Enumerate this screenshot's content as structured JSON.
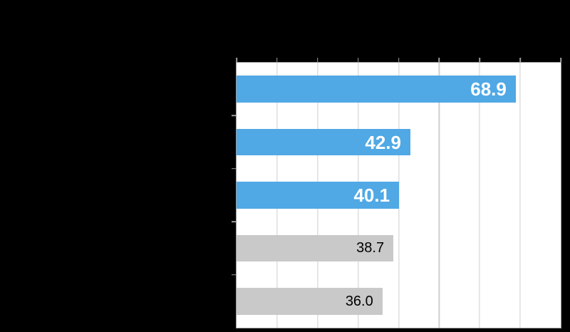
{
  "chart_data": {
    "type": "bar",
    "orientation": "horizontal",
    "title": "",
    "xlabel": "",
    "ylabel": "",
    "categories": [
      "",
      "",
      "",
      "",
      ""
    ],
    "values": [
      68.9,
      42.9,
      40.1,
      38.7,
      36.0
    ],
    "value_labels": [
      "68.9",
      "42.9",
      "40.1",
      "38.7",
      "36.0"
    ],
    "emphasized": [
      true,
      true,
      true,
      false,
      false
    ],
    "xlim": [
      0,
      80
    ],
    "x_tick_step": 10,
    "grid": "vertical",
    "x_axis_position": "top",
    "legend": "none",
    "note": "axis tick labels, category labels and title are not visible (black text over black background)"
  },
  "colors": {
    "page_background": "#000000",
    "plot_background": "#FFFFFF",
    "bar_emphasized": "#50A8E5",
    "bar_normal": "#C9C9C9",
    "label_on_emphasized": "#FFFFFF",
    "label_on_normal": "#000000",
    "gridline": "#CFCFCF",
    "axis_and_ticks": "#9C9C9C"
  }
}
